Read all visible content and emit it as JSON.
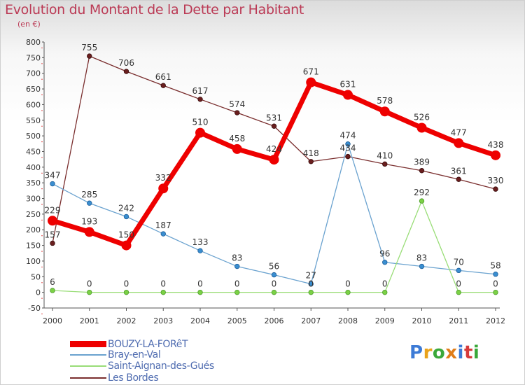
{
  "title": "Evolution du Montant de la Dette par Habitant",
  "unit_label": "(en €)",
  "logo": {
    "text": "Proxiti",
    "colors": [
      "#3d7bd6",
      "#e9a21a",
      "#3aa83a",
      "#e07d18",
      "#3d7bd6",
      "#d63a3a",
      "#3aa83a"
    ]
  },
  "chart_data": {
    "type": "line",
    "x": [
      "2000",
      "2001",
      "2002",
      "2003",
      "2004",
      "2005",
      "2006",
      "2007",
      "2008",
      "2009",
      "2010",
      "2011",
      "2012"
    ],
    "ylim": [
      -50,
      800
    ],
    "yticks": [
      -50,
      0,
      50,
      100,
      150,
      200,
      250,
      300,
      350,
      400,
      450,
      500,
      550,
      600,
      650,
      700,
      750,
      800
    ],
    "grid": false,
    "legend_placement": "bottom-left",
    "series": [
      {
        "name": "BOUZY-LA-FORêT",
        "color": "#ee0000",
        "values": [
          229,
          193,
          150,
          332,
          510,
          458,
          424,
          671,
          631,
          578,
          526,
          477,
          438
        ]
      },
      {
        "name": "Bray-en-Val",
        "color": "#6aa2cf",
        "values": [
          347,
          285,
          242,
          187,
          133,
          83,
          56,
          27,
          474,
          96,
          83,
          70,
          58
        ]
      },
      {
        "name": "Saint-Aignan-des-Gués",
        "color": "#99dd77",
        "values": [
          6,
          0,
          0,
          0,
          0,
          0,
          0,
          0,
          0,
          0,
          292,
          0,
          0
        ]
      },
      {
        "name": "Les Bordes",
        "color": "#7a2e2e",
        "values": [
          157,
          755,
          706,
          661,
          617,
          574,
          531,
          418,
          434,
          410,
          389,
          361,
          330
        ]
      }
    ]
  }
}
